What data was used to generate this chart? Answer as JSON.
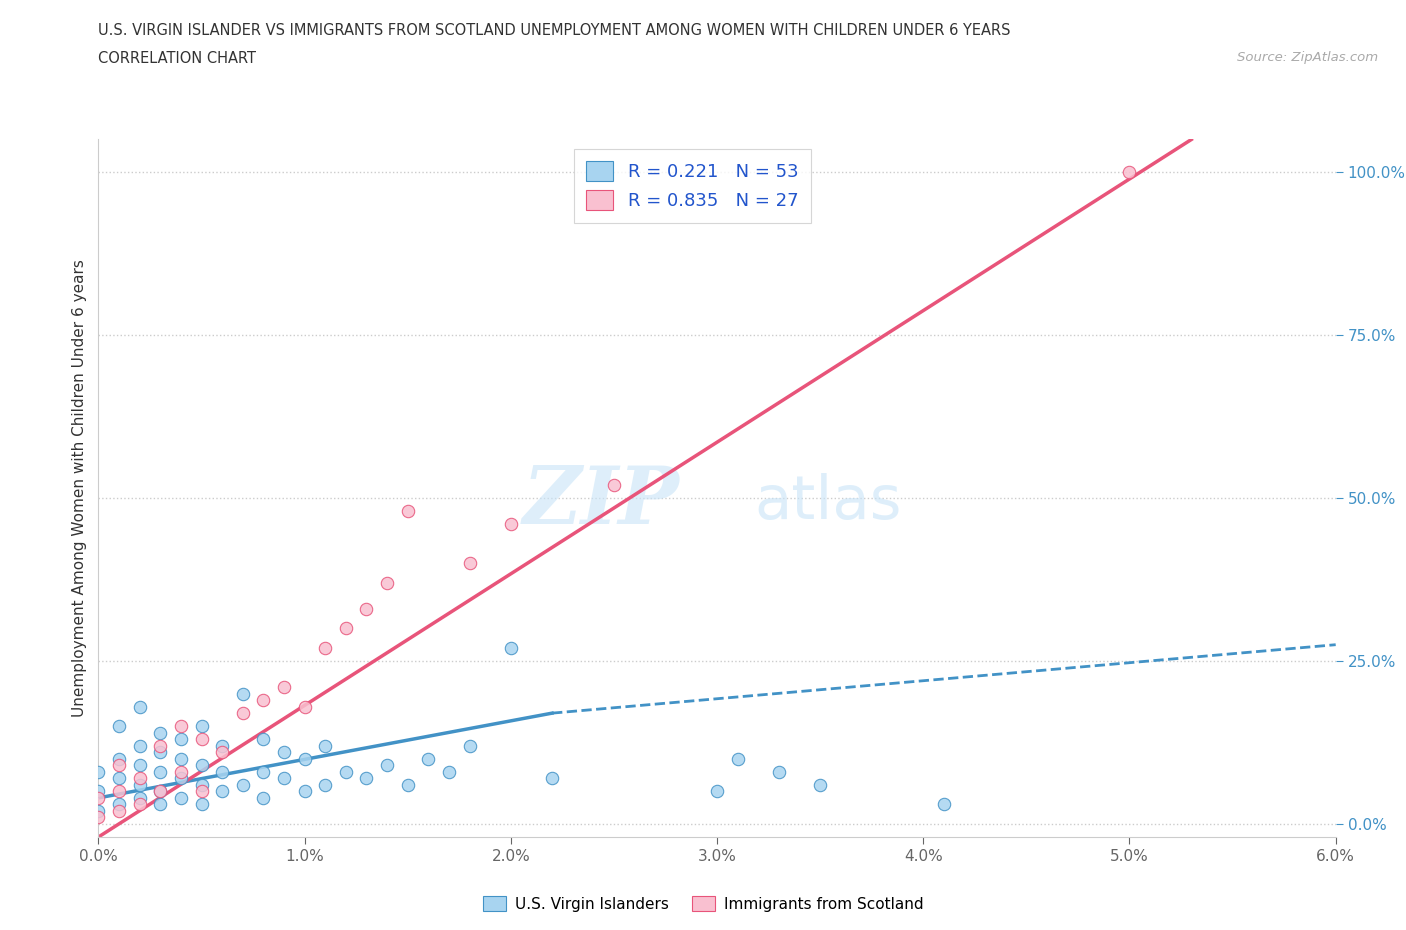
{
  "title_line1": "U.S. VIRGIN ISLANDER VS IMMIGRANTS FROM SCOTLAND UNEMPLOYMENT AMONG WOMEN WITH CHILDREN UNDER 6 YEARS",
  "title_line2": "CORRELATION CHART",
  "source_text": "Source: ZipAtlas.com",
  "ylabel": "Unemployment Among Women with Children Under 6 years",
  "xlim": [
    0.0,
    0.06
  ],
  "ylim": [
    -0.02,
    1.05
  ],
  "xticks": [
    0.0,
    0.01,
    0.02,
    0.03,
    0.04,
    0.05,
    0.06
  ],
  "xtick_labels": [
    "0.0%",
    "1.0%",
    "2.0%",
    "3.0%",
    "4.0%",
    "5.0%",
    "6.0%"
  ],
  "yticks": [
    0.0,
    0.25,
    0.5,
    0.75,
    1.0
  ],
  "ytick_labels": [
    "0.0%",
    "25.0%",
    "50.0%",
    "75.0%",
    "100.0%"
  ],
  "legend_labels": [
    "U.S. Virgin Islanders",
    "Immigrants from Scotland"
  ],
  "color_blue": "#a8d4f0",
  "color_pink": "#f9c0d0",
  "color_blue_dark": "#4292c6",
  "color_pink_dark": "#e8547a",
  "watermark_zip": "ZIP",
  "watermark_atlas": "atlas",
  "R_blue": 0.221,
  "N_blue": 53,
  "R_pink": 0.835,
  "N_pink": 27,
  "blue_scatter_x": [
    0.0,
    0.0,
    0.0,
    0.001,
    0.001,
    0.001,
    0.001,
    0.002,
    0.002,
    0.002,
    0.002,
    0.002,
    0.003,
    0.003,
    0.003,
    0.003,
    0.003,
    0.004,
    0.004,
    0.004,
    0.004,
    0.005,
    0.005,
    0.005,
    0.005,
    0.006,
    0.006,
    0.006,
    0.007,
    0.007,
    0.008,
    0.008,
    0.008,
    0.009,
    0.009,
    0.01,
    0.01,
    0.011,
    0.011,
    0.012,
    0.013,
    0.014,
    0.015,
    0.016,
    0.017,
    0.018,
    0.02,
    0.022,
    0.03,
    0.031,
    0.033,
    0.035,
    0.041
  ],
  "blue_scatter_y": [
    0.02,
    0.05,
    0.08,
    0.03,
    0.07,
    0.1,
    0.15,
    0.04,
    0.06,
    0.09,
    0.12,
    0.18,
    0.03,
    0.05,
    0.08,
    0.11,
    0.14,
    0.04,
    0.07,
    0.1,
    0.13,
    0.03,
    0.06,
    0.09,
    0.15,
    0.05,
    0.08,
    0.12,
    0.06,
    0.2,
    0.04,
    0.08,
    0.13,
    0.07,
    0.11,
    0.05,
    0.1,
    0.06,
    0.12,
    0.08,
    0.07,
    0.09,
    0.06,
    0.1,
    0.08,
    0.12,
    0.27,
    0.07,
    0.05,
    0.1,
    0.08,
    0.06,
    0.03
  ],
  "pink_scatter_x": [
    0.0,
    0.0,
    0.001,
    0.001,
    0.001,
    0.002,
    0.002,
    0.003,
    0.003,
    0.004,
    0.004,
    0.005,
    0.005,
    0.006,
    0.007,
    0.008,
    0.009,
    0.01,
    0.011,
    0.012,
    0.013,
    0.014,
    0.015,
    0.018,
    0.02,
    0.025,
    0.05
  ],
  "pink_scatter_y": [
    0.01,
    0.04,
    0.02,
    0.05,
    0.09,
    0.03,
    0.07,
    0.05,
    0.12,
    0.08,
    0.15,
    0.05,
    0.13,
    0.11,
    0.17,
    0.19,
    0.21,
    0.18,
    0.27,
    0.3,
    0.33,
    0.37,
    0.48,
    0.4,
    0.46,
    0.52,
    1.0
  ],
  "blue_solid_trend_x": [
    0.0,
    0.022
  ],
  "blue_solid_trend_y": [
    0.04,
    0.17
  ],
  "blue_dash_trend_x": [
    0.022,
    0.06
  ],
  "blue_dash_trend_y": [
    0.17,
    0.275
  ],
  "pink_trend_x": [
    0.0,
    0.053
  ],
  "pink_trend_y": [
    -0.02,
    1.05
  ]
}
